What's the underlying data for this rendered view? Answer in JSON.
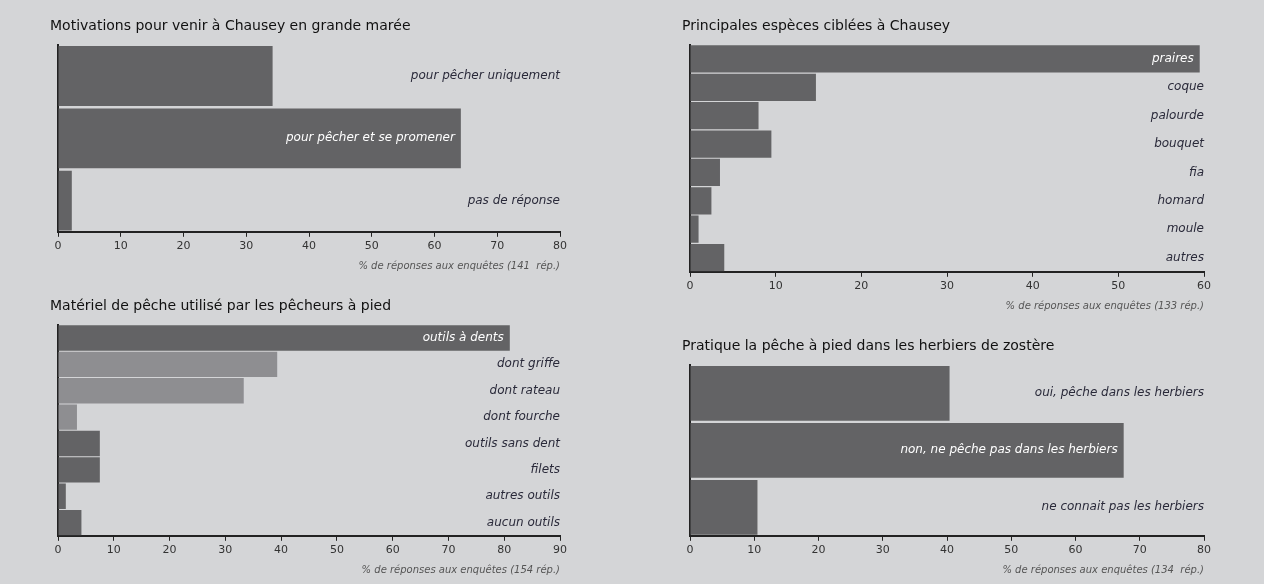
{
  "chart_data": [
    {
      "type": "bar",
      "orientation": "horizontal",
      "title": "Motivations pour venir à Chausey en grande marée",
      "xlabel": "% de réponses aux enquêtes (141  rép.)",
      "categories": [
        "pour pêcher uniquement",
        "pour pêcher et se promener",
        "pas de réponse"
      ],
      "values": [
        34.2,
        64.2,
        2.2
      ],
      "color": "#636365",
      "xlim": [
        0,
        80
      ],
      "xticks": [
        0,
        10,
        20,
        30,
        40,
        50,
        60,
        70,
        80
      ],
      "legend": false
    },
    {
      "type": "bar",
      "orientation": "horizontal",
      "title": "Principales espèces ciblées à Chausey",
      "xlabel": "% de réponses aux enquêtes (133 rép.)",
      "categories": [
        "praires",
        "coque",
        "palourde",
        "bouquet",
        "fia",
        "homard",
        "moule",
        "autres"
      ],
      "values": [
        59.5,
        14.7,
        8,
        9.5,
        3.5,
        2.5,
        1,
        4
      ],
      "color": "#636365",
      "xlim": [
        0,
        60
      ],
      "xticks": [
        0,
        10,
        20,
        30,
        40,
        50,
        60
      ],
      "legend": false
    },
    {
      "type": "bar",
      "orientation": "horizontal",
      "title": "Matériel de pêche utilisé par les pêcheurs à pied",
      "xlabel": "% de réponses aux enquêtes (154 rép.)",
      "categories": [
        "outils à dents",
        "dont griffe",
        "dont rateau",
        "dont fourche",
        "outils sans dent",
        "filets",
        "autres outils",
        "aucun outils"
      ],
      "values": [
        81,
        39.3,
        33.3,
        3.4,
        7.5,
        7.5,
        1.4,
        4.2
      ],
      "colors": [
        "#636365",
        "#8e8e91",
        "#8e8e91",
        "#8e8e91",
        "#636365",
        "#636365",
        "#636365",
        "#636365"
      ],
      "xlim": [
        0,
        90
      ],
      "xticks": [
        0,
        10,
        20,
        30,
        40,
        50,
        60,
        70,
        80,
        90
      ],
      "legend": false
    },
    {
      "type": "bar",
      "orientation": "horizontal",
      "title": "Pratique la pêche à pied dans les herbiers de zostère",
      "xlabel": "% de réponses aux enquêtes (134  rép.)",
      "categories": [
        "oui, pêche dans les herbiers",
        "non, ne pêche pas dans les herbiers",
        "ne connait pas les herbiers"
      ],
      "values": [
        40.4,
        67.5,
        10.5
      ],
      "color": "#636365",
      "xlim": [
        0,
        80
      ],
      "xticks": [
        0,
        10,
        20,
        30,
        40,
        50,
        60,
        70,
        80
      ],
      "legend": false
    }
  ]
}
